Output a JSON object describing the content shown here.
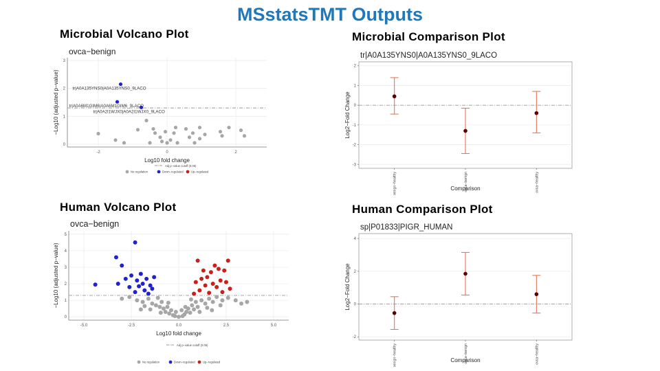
{
  "slide": {
    "title": "MSstatsTMT Outputs"
  },
  "headings": {
    "microbial_volcano": "Microbial  Volcano  Plot",
    "microbial_comparison": "Microbial  Comparison  Plot",
    "human_volcano": "Human  Volcano  Plot",
    "human_comparison": "Human  Comparison  Plot"
  },
  "chart_data": [
    {
      "id": "microbial-volcano",
      "type": "scatter",
      "title": "ovca−benign",
      "xlabel": "Log10 fold change",
      "ylabel": "−Log10 (adjusted p−value)",
      "xlim": [
        -2.9,
        2.9
      ],
      "ylim": [
        -0.1,
        3.1
      ],
      "xticks": [
        -2,
        0,
        2
      ],
      "yticks": [
        0,
        1,
        2,
        3
      ],
      "cutoff": 1.3,
      "legend": {
        "cutoff_label": "Adj p−value cutoff (0.05)",
        "entries": [
          "No regulation",
          "Down−regulated",
          "Up−regulated"
        ]
      },
      "colors": {
        "none": "#a6a6a6",
        "down": "#2222cc",
        "up": "#cc1f1a"
      },
      "points": [
        {
          "x": -1.35,
          "y": 2.15,
          "group": "down"
        },
        {
          "x": -1.45,
          "y": 1.52,
          "group": "down"
        },
        {
          "x": -0.75,
          "y": 1.32,
          "group": "down"
        },
        {
          "x": -2.0,
          "y": 0.38,
          "group": "none"
        },
        {
          "x": -0.6,
          "y": 0.85,
          "group": "none"
        },
        {
          "x": -0.4,
          "y": 0.55,
          "group": "none"
        },
        {
          "x": -0.35,
          "y": 0.4,
          "group": "none"
        },
        {
          "x": -0.85,
          "y": 0.52,
          "group": "none"
        },
        {
          "x": -0.2,
          "y": 0.25,
          "group": "none"
        },
        {
          "x": -0.15,
          "y": 0.1,
          "group": "none"
        },
        {
          "x": 0.0,
          "y": 0.05,
          "group": "none"
        },
        {
          "x": 0.1,
          "y": 0.15,
          "group": "none"
        },
        {
          "x": 0.2,
          "y": 0.4,
          "group": "none"
        },
        {
          "x": 0.3,
          "y": 0.05,
          "group": "none"
        },
        {
          "x": -0.05,
          "y": 0.45,
          "group": "none"
        },
        {
          "x": 0.25,
          "y": 0.6,
          "group": "none"
        },
        {
          "x": 0.55,
          "y": 0.55,
          "group": "none"
        },
        {
          "x": 0.65,
          "y": 0.25,
          "group": "none"
        },
        {
          "x": 0.75,
          "y": 0.4,
          "group": "none"
        },
        {
          "x": 0.8,
          "y": 0.05,
          "group": "none"
        },
        {
          "x": 0.95,
          "y": 0.6,
          "group": "none"
        },
        {
          "x": 0.95,
          "y": 0.2,
          "group": "none"
        },
        {
          "x": 1.1,
          "y": 0.35,
          "group": "none"
        },
        {
          "x": -1.5,
          "y": 0.15,
          "group": "none"
        },
        {
          "x": -1.25,
          "y": 0.05,
          "group": "none"
        },
        {
          "x": -0.5,
          "y": 0.05,
          "group": "none"
        },
        {
          "x": 1.55,
          "y": 0.45,
          "group": "none"
        },
        {
          "x": 1.6,
          "y": 0.3,
          "group": "none"
        },
        {
          "x": 1.8,
          "y": 0.6,
          "group": "none"
        },
        {
          "x": 2.15,
          "y": 0.5,
          "group": "none"
        },
        {
          "x": 2.25,
          "y": 0.3,
          "group": "none"
        }
      ],
      "annotations": [
        {
          "x": -1.35,
          "y": 2.15,
          "text": "tr|A0A135YNS0|A0A135YNS0_9LACO"
        },
        {
          "x": -1.45,
          "y": 1.52,
          "text": "tr|A0A6M1GIM6|A0A6M1GIM6_9LACO"
        },
        {
          "x": -0.75,
          "y": 1.32,
          "text": "tr|A0A2I1WJX0|A0A2I1WJX0_9LACO"
        }
      ]
    },
    {
      "id": "microbial-comparison",
      "type": "errorbar",
      "title": "tr|A0A135YNS0|A0A135YNS0_9LACO",
      "xlabel": "Comparison",
      "ylabel": "Log2−Fold Change",
      "categories": [
        "benign−healthy",
        "ovca−benign",
        "ovca−healthy"
      ],
      "values": [
        0.45,
        -1.3,
        -0.4
      ],
      "lower": [
        -0.45,
        -2.45,
        -1.4
      ],
      "upper": [
        1.4,
        -0.15,
        0.7
      ],
      "ylim": [
        -3.2,
        2.2
      ],
      "yticks": [
        -3,
        -2,
        -1,
        0,
        1,
        2
      ]
    },
    {
      "id": "human-volcano",
      "type": "scatter",
      "title": "ovca−benign",
      "xlabel": "Log10 fold change",
      "ylabel": "−Log10 (adjusted p−value)",
      "xlim": [
        -5.8,
        5.8
      ],
      "ylim": [
        -0.2,
        5.2
      ],
      "xticks": [
        -5.0,
        -2.5,
        0.0,
        2.5,
        5.0
      ],
      "yticks": [
        0,
        1,
        2,
        3,
        4,
        5
      ],
      "cutoff": 1.3,
      "legend": {
        "cutoff_label": "Adj p−value cutoff (0.05)",
        "entries": [
          "No regulation",
          "Down−regulated",
          "Up−regulated"
        ]
      },
      "colors": {
        "none": "#a6a6a6",
        "down": "#2222cc",
        "up": "#cc1f1a"
      },
      "points": [
        {
          "x": -4.4,
          "y": 1.95,
          "group": "down"
        },
        {
          "x": -3.3,
          "y": 3.6,
          "group": "down"
        },
        {
          "x": -3.0,
          "y": 3.1,
          "group": "down"
        },
        {
          "x": -2.3,
          "y": 4.5,
          "group": "down"
        },
        {
          "x": -2.8,
          "y": 2.3,
          "group": "down"
        },
        {
          "x": -2.5,
          "y": 2.5,
          "group": "down"
        },
        {
          "x": -2.2,
          "y": 2.2,
          "group": "down"
        },
        {
          "x": -2.0,
          "y": 2.6,
          "group": "down"
        },
        {
          "x": -1.9,
          "y": 2.0,
          "group": "down"
        },
        {
          "x": -1.7,
          "y": 2.3,
          "group": "down"
        },
        {
          "x": -1.5,
          "y": 1.9,
          "group": "down"
        },
        {
          "x": -1.3,
          "y": 2.4,
          "group": "down"
        },
        {
          "x": -2.6,
          "y": 1.8,
          "group": "down"
        },
        {
          "x": -3.2,
          "y": 2.0,
          "group": "down"
        },
        {
          "x": -1.8,
          "y": 1.6,
          "group": "down"
        },
        {
          "x": -2.3,
          "y": 1.5,
          "group": "down"
        },
        {
          "x": -1.6,
          "y": 1.4,
          "group": "down"
        },
        {
          "x": -2.1,
          "y": 1.85,
          "group": "down"
        },
        {
          "x": -1.4,
          "y": 1.7,
          "group": "down"
        },
        {
          "x": 1.0,
          "y": 3.4,
          "group": "up"
        },
        {
          "x": 1.9,
          "y": 3.1,
          "group": "up"
        },
        {
          "x": 2.1,
          "y": 2.9,
          "group": "up"
        },
        {
          "x": 2.4,
          "y": 2.8,
          "group": "up"
        },
        {
          "x": 2.6,
          "y": 3.4,
          "group": "up"
        },
        {
          "x": 1.7,
          "y": 2.7,
          "group": "up"
        },
        {
          "x": 1.5,
          "y": 2.4,
          "group": "up"
        },
        {
          "x": 1.2,
          "y": 2.3,
          "group": "up"
        },
        {
          "x": 2.2,
          "y": 2.2,
          "group": "up"
        },
        {
          "x": 1.8,
          "y": 2.0,
          "group": "up"
        },
        {
          "x": 2.0,
          "y": 1.8,
          "group": "up"
        },
        {
          "x": 1.4,
          "y": 1.9,
          "group": "up"
        },
        {
          "x": 1.1,
          "y": 1.6,
          "group": "up"
        },
        {
          "x": 2.3,
          "y": 1.5,
          "group": "up"
        },
        {
          "x": 1.6,
          "y": 1.45,
          "group": "up"
        },
        {
          "x": 2.5,
          "y": 2.1,
          "group": "up"
        },
        {
          "x": 1.3,
          "y": 2.8,
          "group": "up"
        },
        {
          "x": 0.9,
          "y": 2.1,
          "group": "up"
        },
        {
          "x": 0.8,
          "y": 1.4,
          "group": "up"
        },
        {
          "x": 2.7,
          "y": 1.7,
          "group": "up"
        },
        {
          "x": -2.2,
          "y": 1.0,
          "group": "none"
        },
        {
          "x": -1.9,
          "y": 0.9,
          "group": "none"
        },
        {
          "x": -1.6,
          "y": 1.1,
          "group": "none"
        },
        {
          "x": -1.4,
          "y": 0.8,
          "group": "none"
        },
        {
          "x": -1.2,
          "y": 0.7,
          "group": "none"
        },
        {
          "x": -1.0,
          "y": 0.6,
          "group": "none"
        },
        {
          "x": -0.9,
          "y": 0.9,
          "group": "none"
        },
        {
          "x": -0.8,
          "y": 0.5,
          "group": "none"
        },
        {
          "x": -0.7,
          "y": 0.3,
          "group": "none"
        },
        {
          "x": -0.6,
          "y": 0.6,
          "group": "none"
        },
        {
          "x": -0.5,
          "y": 0.2,
          "group": "none"
        },
        {
          "x": -0.4,
          "y": 0.4,
          "group": "none"
        },
        {
          "x": -0.3,
          "y": 0.1,
          "group": "none"
        },
        {
          "x": -0.2,
          "y": 0.05,
          "group": "none"
        },
        {
          "x": 0.0,
          "y": 0.0,
          "group": "none"
        },
        {
          "x": 0.2,
          "y": 0.05,
          "group": "none"
        },
        {
          "x": 0.3,
          "y": 0.15,
          "group": "none"
        },
        {
          "x": 0.4,
          "y": 0.3,
          "group": "none"
        },
        {
          "x": 0.5,
          "y": 0.5,
          "group": "none"
        },
        {
          "x": 0.6,
          "y": 0.25,
          "group": "none"
        },
        {
          "x": 0.7,
          "y": 0.7,
          "group": "none"
        },
        {
          "x": 0.8,
          "y": 0.45,
          "group": "none"
        },
        {
          "x": 0.9,
          "y": 0.9,
          "group": "none"
        },
        {
          "x": 1.0,
          "y": 0.6,
          "group": "none"
        },
        {
          "x": 1.2,
          "y": 1.0,
          "group": "none"
        },
        {
          "x": 1.4,
          "y": 0.8,
          "group": "none"
        },
        {
          "x": 1.6,
          "y": 1.1,
          "group": "none"
        },
        {
          "x": 1.8,
          "y": 0.9,
          "group": "none"
        },
        {
          "x": 2.0,
          "y": 1.2,
          "group": "none"
        },
        {
          "x": 2.3,
          "y": 1.0,
          "group": "none"
        },
        {
          "x": 2.6,
          "y": 1.15,
          "group": "none"
        },
        {
          "x": 3.0,
          "y": 1.0,
          "group": "none"
        },
        {
          "x": 3.3,
          "y": 0.8,
          "group": "none"
        },
        {
          "x": 3.6,
          "y": 0.9,
          "group": "none"
        },
        {
          "x": -2.6,
          "y": 1.2,
          "group": "none"
        },
        {
          "x": -3.0,
          "y": 1.1,
          "group": "none"
        },
        {
          "x": -1.1,
          "y": 1.15,
          "group": "none"
        },
        {
          "x": -0.95,
          "y": 0.25,
          "group": "none"
        },
        {
          "x": 0.15,
          "y": 0.4,
          "group": "none"
        },
        {
          "x": 1.1,
          "y": 0.3,
          "group": "none"
        },
        {
          "x": 1.5,
          "y": 0.55,
          "group": "none"
        },
        {
          "x": -1.5,
          "y": 0.45,
          "group": "none"
        },
        {
          "x": -1.8,
          "y": 0.65,
          "group": "none"
        },
        {
          "x": 2.2,
          "y": 0.7,
          "group": "none"
        },
        {
          "x": -0.15,
          "y": 0.3,
          "group": "none"
        },
        {
          "x": 0.35,
          "y": 0.6,
          "group": "none"
        },
        {
          "x": -0.55,
          "y": 0.85,
          "group": "none"
        },
        {
          "x": 0.65,
          "y": 1.05,
          "group": "none"
        },
        {
          "x": -2.0,
          "y": 0.45,
          "group": "none"
        },
        {
          "x": 1.75,
          "y": 0.4,
          "group": "none"
        }
      ]
    },
    {
      "id": "human-comparison",
      "type": "errorbar",
      "title": "sp|P01833|PIGR_HUMAN",
      "xlabel": "Comparison",
      "ylabel": "Log2−Fold Change",
      "categories": [
        "benign−healthy",
        "ovca−benign",
        "ovca−healthy"
      ],
      "values": [
        -0.55,
        1.85,
        0.6
      ],
      "lower": [
        -1.55,
        0.55,
        -0.55
      ],
      "upper": [
        0.45,
        3.15,
        1.75
      ],
      "ylim": [
        -2.2,
        4.3
      ],
      "yticks": [
        -2,
        0,
        2,
        4
      ]
    }
  ]
}
